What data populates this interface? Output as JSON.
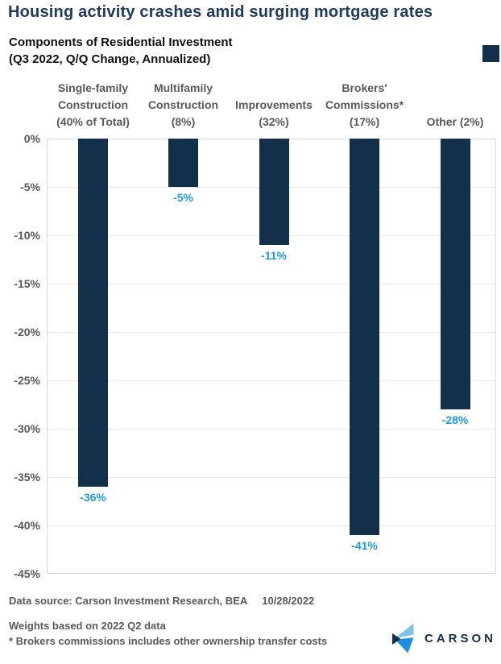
{
  "header": {
    "title": "Housing activity crashes amid surging mortgage rates",
    "subtitle_line1": "Components of Residential Investment",
    "subtitle_line2": "(Q3 2022, Q/Q Change, Annualized)"
  },
  "colors": {
    "title_navy": "#1E3A5F",
    "bar_navy": "#13304A",
    "value_label_blue": "#1E9BE8",
    "axis_gray": "#595959",
    "gridline_gray": "#E7E7E7",
    "logo_light_blue": "#7FC2EE",
    "logo_bright_blue": "#1D8FE1"
  },
  "chart_data": {
    "type": "bar",
    "title": "Components of Residential Investment",
    "subtitle": "(Q3 2022, Q/Q Change, Annualized)",
    "categories": [
      "Single-family Construction (40% of Total)",
      "Multifamily Construction (8%)",
      "Improvements (32%)",
      "Brokers' Commissions* (17%)",
      "Other (2%)"
    ],
    "category_label_lines": [
      [
        "Single-family",
        "Construction",
        "(40% of Total)"
      ],
      [
        "Multifamily",
        "Construction",
        "(8%)"
      ],
      [
        "Improvements",
        "(32%)"
      ],
      [
        "Brokers'",
        "Commissions*",
        "(17%)"
      ],
      [
        "Other (2%)"
      ]
    ],
    "values": [
      -36,
      -5,
      -11,
      -41,
      -28
    ],
    "value_labels": [
      "-36%",
      "-5%",
      "-11%",
      "-41%",
      "-28%"
    ],
    "ylim": [
      -45,
      0
    ],
    "ytick_labels": [
      "0%",
      "-5%",
      "-10%",
      "-15%",
      "-20%",
      "-25%",
      "-30%",
      "-35%",
      "-40%",
      "-45%"
    ],
    "grid": true,
    "legend": false,
    "bar_color": "#13304A"
  },
  "footer": {
    "data_source": "Data source: Carson Investment Research, BEA",
    "date": "10/28/2022",
    "note1": "Weights based on 2022 Q2 data",
    "note2": "* Brokers commissions includes other ownership transfer costs",
    "logo_text": "CARSON"
  }
}
